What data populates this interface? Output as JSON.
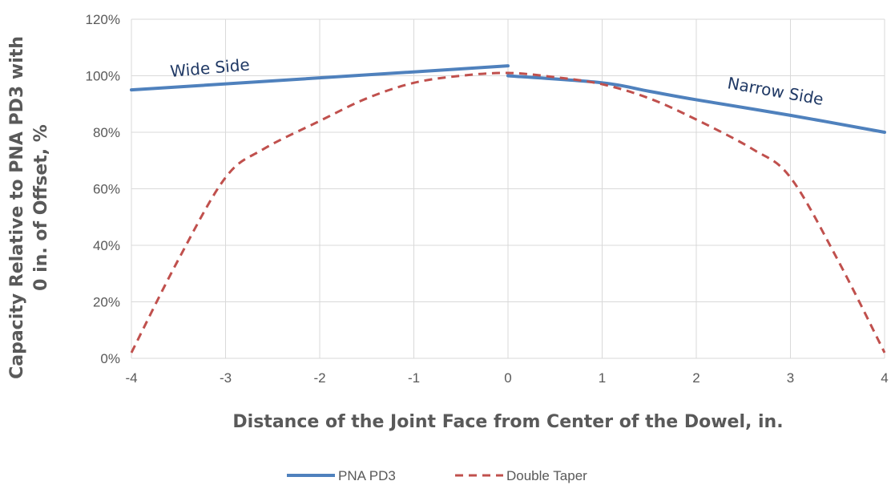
{
  "chart_data": {
    "type": "line",
    "xlabel": "Distance of the Joint Face from Center of the Dowel, in.",
    "ylabel_lines": [
      "Capacity Relative to PNA PD3 with",
      "0 in. of Offset, %"
    ],
    "xlim": [
      -4,
      4
    ],
    "ylim": [
      0,
      120
    ],
    "x_ticks": [
      "-4",
      "-3",
      "-2",
      "-1",
      "0",
      "1",
      "2",
      "3",
      "4"
    ],
    "y_ticks": [
      "0%",
      "20%",
      "40%",
      "60%",
      "80%",
      "100%",
      "120%"
    ],
    "grid": true,
    "legend_position": "bottom",
    "annotations": {
      "wide": "Wide Side",
      "narrow": "Narrow Side"
    },
    "series": [
      {
        "name": "PNA PD3",
        "color": "#4f81bd",
        "style": "solid",
        "segments": [
          [
            [
              -4,
              95
            ],
            [
              0,
              103.5
            ]
          ],
          [
            [
              0,
              100
            ],
            [
              1,
              97.5
            ],
            [
              1.5,
              94.5
            ],
            [
              2,
              91.5
            ],
            [
              3,
              86
            ],
            [
              4,
              80
            ]
          ]
        ]
      },
      {
        "name": "Double Taper",
        "color": "#c0504d",
        "style": "dashed",
        "segments": [
          [
            [
              -4,
              2
            ],
            [
              -3.5,
              35
            ],
            [
              -3,
              64
            ],
            [
              -2.6,
              74
            ],
            [
              -2,
              84
            ],
            [
              -1.5,
              92
            ],
            [
              -1,
              97.5
            ],
            [
              -0.5,
              100
            ],
            [
              0,
              101
            ],
            [
              0.5,
              99.5
            ],
            [
              1,
              97
            ],
            [
              1.5,
              92
            ],
            [
              2,
              84.5
            ],
            [
              2.6,
              74
            ],
            [
              3,
              64
            ],
            [
              3.5,
              35
            ],
            [
              4,
              2
            ]
          ]
        ]
      }
    ]
  }
}
